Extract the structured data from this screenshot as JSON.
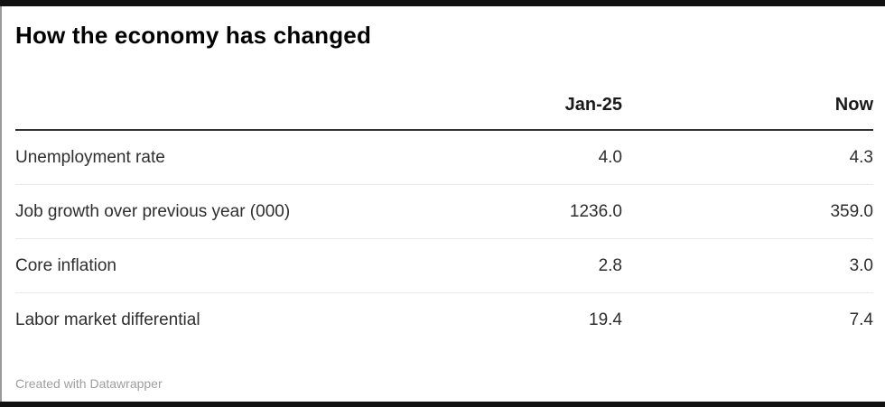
{
  "title": "How the economy has changed",
  "table": {
    "columns": [
      "",
      "Jan-25",
      "Now"
    ],
    "rows": [
      {
        "label": "Unemployment rate",
        "values": [
          "4.0",
          "4.3"
        ]
      },
      {
        "label": "Job growth over previous year (000)",
        "values": [
          "1236.0",
          "359.0"
        ]
      },
      {
        "label": "Core inflation",
        "values": [
          "2.8",
          "3.0"
        ]
      },
      {
        "label": "Labor market differential",
        "values": [
          "19.4",
          "7.4"
        ]
      }
    ]
  },
  "footer": {
    "attribution": "Created with Datawrapper"
  },
  "colors": {
    "title_text": "#000000",
    "header_text": "#1a1a1a",
    "body_text": "#2e2e2e",
    "footer_text": "#9e9e9e",
    "header_rule": "#333333",
    "row_rule": "#e8e8e8",
    "frame_bar": "#111111",
    "left_edge": "#9a9a9a",
    "background": "#ffffff"
  },
  "chart_data": {
    "type": "table",
    "title": "How the economy has changed",
    "columns": [
      "",
      "Jan-25",
      "Now"
    ],
    "rows": [
      [
        "Unemployment rate",
        4.0,
        4.3
      ],
      [
        "Job growth over previous year (000)",
        1236.0,
        359.0
      ],
      [
        "Core inflation",
        2.8,
        3.0
      ],
      [
        "Labor market differential",
        19.4,
        7.4
      ]
    ],
    "notes": "Numeric columns right-aligned, shown with one decimal place; attribution footer: Created with Datawrapper"
  }
}
